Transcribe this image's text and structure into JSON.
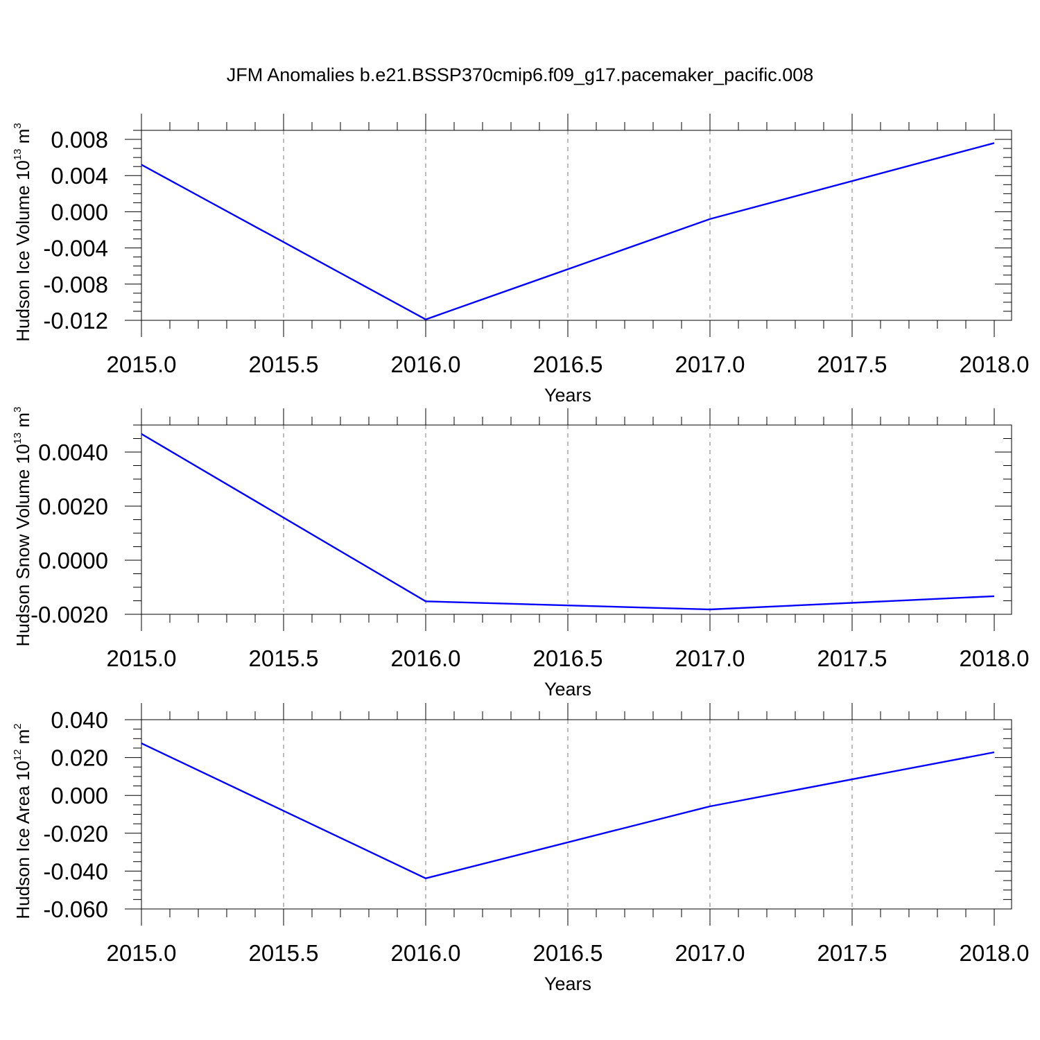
{
  "title": "JFM Anomalies b.e21.BSSP370cmip6.f09_g17.pacemaker_pacific.008",
  "colors": {
    "line": "#0000ff",
    "grid": "#999999",
    "axis": "#000000"
  },
  "chart_data": [
    {
      "type": "line",
      "ylabel": {
        "text": "Hudson Ice Volume 10",
        "exp": "13",
        "unit": "m",
        "unit_exp": "3"
      },
      "xlabel": "Years",
      "xlim": [
        2015.0,
        2018.0
      ],
      "ylim": [
        -0.012,
        0.009
      ],
      "xticks": [
        "2015.0",
        "2015.5",
        "2016.0",
        "2016.5",
        "2017.0",
        "2017.5",
        "2018.0"
      ],
      "yticks": [
        "0.008",
        "0.004",
        "0.000",
        "-0.004",
        "-0.008",
        "-0.012"
      ],
      "grid": "x-dashed",
      "x": [
        2015.0,
        2016.0,
        2017.0,
        2018.0
      ],
      "series": [
        {
          "values": [
            0.0052,
            -0.0119,
            -0.0008,
            0.0076
          ]
        }
      ]
    },
    {
      "type": "line",
      "ylabel": {
        "text": "Hudson Snow Volume 10",
        "exp": "13",
        "unit": "m",
        "unit_exp": "3"
      },
      "xlabel": "Years",
      "xlim": [
        2015.0,
        2018.0
      ],
      "ylim": [
        -0.002,
        0.005
      ],
      "xticks": [
        "2015.0",
        "2015.5",
        "2016.0",
        "2016.5",
        "2017.0",
        "2017.5",
        "2018.0"
      ],
      "yticks": [
        "0.0040",
        "0.0020",
        "0.0000",
        "-0.0020"
      ],
      "grid": "x-dashed",
      "x": [
        2015.0,
        2016.0,
        2017.0,
        2018.0
      ],
      "series": [
        {
          "values": [
            0.00467,
            -0.00152,
            -0.00182,
            -0.00133
          ]
        }
      ]
    },
    {
      "type": "line",
      "ylabel": {
        "text": "Hudson Ice Area 10",
        "exp": "12",
        "unit": "m",
        "unit_exp": "2"
      },
      "xlabel": "Years",
      "xlim": [
        2015.0,
        2018.0
      ],
      "ylim": [
        -0.06,
        0.04
      ],
      "xticks": [
        "2015.0",
        "2015.5",
        "2016.0",
        "2016.5",
        "2017.0",
        "2017.5",
        "2018.0"
      ],
      "yticks": [
        "0.040",
        "0.020",
        "0.000",
        "-0.020",
        "-0.040",
        "-0.060"
      ],
      "grid": "x-dashed",
      "x": [
        2015.0,
        2016.0,
        2017.0,
        2018.0
      ],
      "series": [
        {
          "values": [
            0.0275,
            -0.0438,
            -0.0058,
            0.0228
          ]
        }
      ]
    }
  ]
}
